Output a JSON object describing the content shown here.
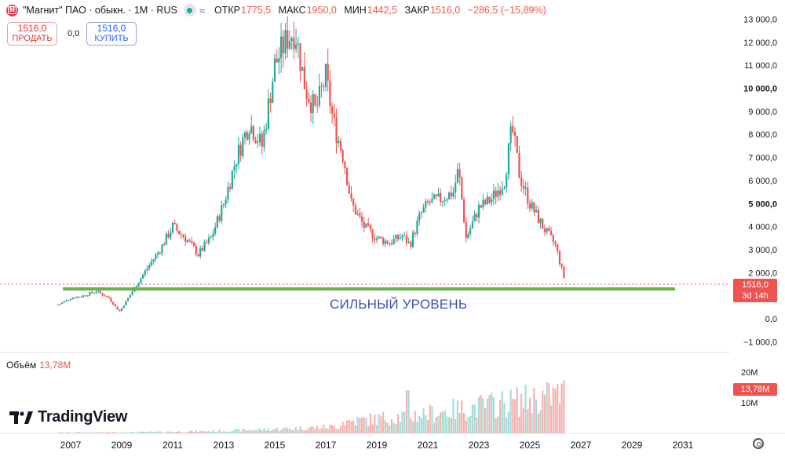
{
  "header": {
    "logo_text": "M",
    "title": "\"Магнит\" ПАО · обыкн. · 1M · RUS",
    "ohlc": [
      {
        "key": "ОТКР",
        "value": "1775,5"
      },
      {
        "key": "МАКС",
        "value": "1950,0"
      },
      {
        "key": "МИН",
        "value": "1442,5"
      },
      {
        "key": "ЗАКР",
        "value": "1516,0"
      },
      {
        "key": "",
        "value": "−286,5 (−15,89%)"
      }
    ]
  },
  "trade": {
    "sell_price": "1516,0",
    "sell_label": "ПРОДАТЬ",
    "spread": "0,0",
    "buy_price": "1516,0",
    "buy_label": "КУПИТЬ"
  },
  "volume_panel": {
    "label": "Объём",
    "value": "13,78M",
    "axis_ticks": [
      "20M",
      "10M"
    ],
    "tag": "13,78M"
  },
  "branding": {
    "name": "TradingView"
  },
  "annotation": "СИЛЬНЫЙ УРОВЕНЬ",
  "price_tag": {
    "price": "1516,0",
    "countdown": "3d 14h"
  },
  "colors": {
    "up": "#26a69a",
    "down": "#ef5350",
    "level_line": "#6ab04c",
    "annotation": "#3f51b5"
  },
  "chart_data": {
    "type": "line",
    "chart_style": "candlestick",
    "symbol": "\"Магнит\" ПАО · обыкн.",
    "interval": "1M",
    "y_ticks": [
      13000,
      12000,
      11000,
      10000,
      9000,
      8000,
      7000,
      6000,
      5000,
      4000,
      3000,
      2000,
      0,
      -1000
    ],
    "y_tick_labels": [
      "13 000,0",
      "12 000,0",
      "11 000,0",
      "10 000,0",
      "9 000,0",
      "8 000,0",
      "7 000,0",
      "6 000,0",
      "5 000,0",
      "4 000,0",
      "3 000,0",
      "2 000,0",
      "0,0",
      "−1 000,0"
    ],
    "ylim": [
      -1000,
      13000
    ],
    "x_ticks": [
      "2007",
      "2009",
      "2011",
      "2013",
      "2015",
      "2017",
      "2019",
      "2021",
      "2023",
      "2025",
      "2027",
      "2029",
      "2031"
    ],
    "series": [
      {
        "x": [
          2006.5,
          2007.0,
          2007.5,
          2008.0,
          2008.5,
          2008.9,
          2009.2,
          2009.6,
          2010.0,
          2010.5,
          2011.0,
          2011.5,
          2012.0,
          2012.5,
          2013.0,
          2013.5,
          2014.0,
          2014.5,
          2015.0,
          2015.5,
          2015.8,
          2016.2,
          2016.6,
          2017.0,
          2017.3,
          2017.7,
          2018.0,
          2018.5,
          2019.0,
          2019.5,
          2020.0,
          2020.3,
          2020.7,
          2021.0,
          2021.5,
          2022.0,
          2022.2,
          2022.5,
          2023.0,
          2023.5,
          2024.0,
          2024.3,
          2024.6,
          2025.0,
          2025.5,
          2026.0,
          2026.4
        ],
        "values": [
          600,
          900,
          1000,
          1200,
          900,
          300,
          800,
          1500,
          2200,
          3000,
          4000,
          3500,
          2800,
          3500,
          5000,
          7000,
          8500,
          7500,
          11000,
          12200,
          12500,
          10000,
          9000,
          10500,
          8500,
          7000,
          5000,
          4000,
          3500,
          3300,
          3600,
          3200,
          4500,
          5000,
          5200,
          5500,
          6500,
          3500,
          4800,
          5200,
          6000,
          8300,
          6200,
          5000,
          4000,
          3200,
          1516
        ]
      }
    ],
    "volume": {
      "axis_ticks": [
        "20M",
        "10M"
      ],
      "last": "13,78M"
    },
    "support_level": 1900,
    "last_price": 1516
  }
}
